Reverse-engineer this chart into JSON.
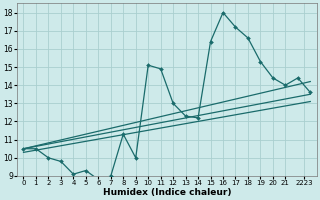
{
  "xlabel": "Humidex (Indice chaleur)",
  "bg_color": "#ceeaea",
  "grid_color": "#aacfcf",
  "line_color": "#1a6b6b",
  "xlim": [
    -0.5,
    23.5
  ],
  "ylim": [
    9,
    18.5
  ],
  "xtick_labels": [
    "0",
    "1",
    "2",
    "3",
    "4",
    "5",
    "6",
    "7",
    "8",
    "9",
    "10",
    "11",
    "12",
    "13",
    "14",
    "15",
    "16",
    "17",
    "18",
    "19",
    "20",
    "21",
    "2223"
  ],
  "xtick_pos": [
    0,
    1,
    2,
    3,
    4,
    5,
    6,
    7,
    8,
    9,
    10,
    11,
    12,
    13,
    14,
    15,
    16,
    17,
    18,
    19,
    20,
    21,
    22.5
  ],
  "yticks": [
    9,
    10,
    11,
    12,
    13,
    14,
    15,
    16,
    17,
    18
  ],
  "main_x": [
    0,
    1,
    2,
    3,
    4,
    5,
    6,
    7,
    8,
    9,
    10,
    11,
    12,
    13,
    14,
    15,
    16,
    17,
    18,
    19,
    20,
    21,
    22,
    23
  ],
  "main_y": [
    10.5,
    10.5,
    10.0,
    9.8,
    9.1,
    9.3,
    8.8,
    9.0,
    11.3,
    10.0,
    15.1,
    14.9,
    13.0,
    12.3,
    12.2,
    16.4,
    18.0,
    17.2,
    16.6,
    15.3,
    14.4,
    14.0,
    14.4,
    13.6
  ],
  "line1_x": [
    0,
    23
  ],
  "line1_y": [
    10.5,
    14.2
  ],
  "line2_x": [
    0,
    23
  ],
  "line2_y": [
    10.5,
    13.5
  ],
  "line3_x": [
    0,
    23
  ],
  "line3_y": [
    10.3,
    13.1
  ]
}
